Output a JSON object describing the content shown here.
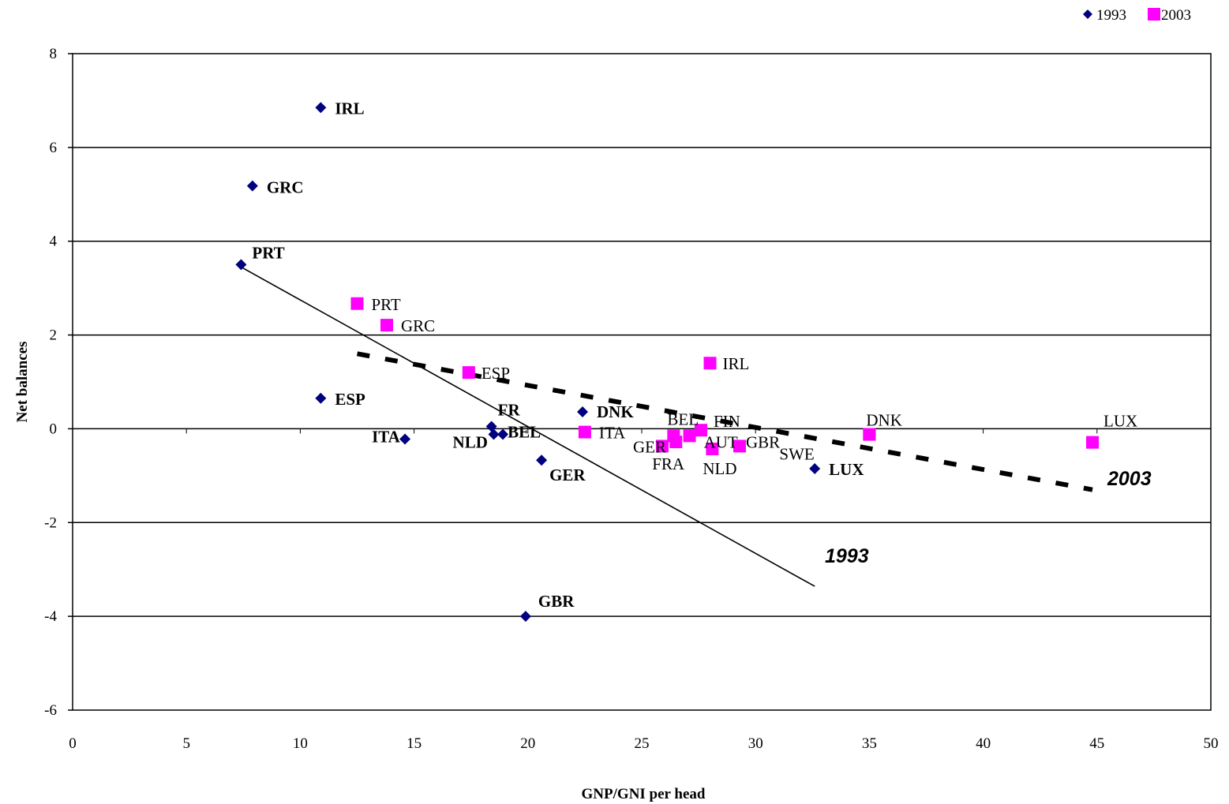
{
  "chart_data": {
    "type": "scatter",
    "xlabel": "GNP/GNI per head",
    "ylabel": "Net balances",
    "xlim": [
      0,
      50
    ],
    "ylim": [
      -6,
      8
    ],
    "x_ticks": [
      "0",
      "5",
      "10",
      "15",
      "20",
      "25",
      "30",
      "35",
      "40",
      "45",
      "50"
    ],
    "y_ticks": [
      "8",
      "6",
      "4",
      "2",
      "0",
      "-2",
      "-4",
      "-6"
    ],
    "grid": "horizontal",
    "legend_position": "top-right",
    "series": [
      {
        "name": "1993",
        "marker": "diamond",
        "color": "#000080",
        "points": [
          {
            "label": "IRL",
            "x": 10.9,
            "y": 6.85
          },
          {
            "label": "GRC",
            "x": 7.9,
            "y": 5.18
          },
          {
            "label": "PRT",
            "x": 7.4,
            "y": 3.5
          },
          {
            "label": "ESP",
            "x": 10.9,
            "y": 0.65
          },
          {
            "label": "ITA",
            "x": 14.6,
            "y": -0.22
          },
          {
            "label": "FR",
            "x": 18.4,
            "y": 0.05
          },
          {
            "label": "NLD",
            "x": 18.5,
            "y": -0.12
          },
          {
            "label": "BEL",
            "x": 18.9,
            "y": -0.12
          },
          {
            "label": "DNK",
            "x": 22.4,
            "y": 0.36
          },
          {
            "label": "GER",
            "x": 20.6,
            "y": -0.67
          },
          {
            "label": "GBR",
            "x": 19.9,
            "y": -4.0
          },
          {
            "label": "LUX",
            "x": 32.6,
            "y": -0.85
          }
        ]
      },
      {
        "name": "2003",
        "marker": "square",
        "color": "#FF00FF",
        "points": [
          {
            "label": "PRT",
            "x": 12.5,
            "y": 2.67
          },
          {
            "label": "GRC",
            "x": 13.8,
            "y": 2.21
          },
          {
            "label": "ESP",
            "x": 17.4,
            "y": 1.2
          },
          {
            "label": "IRL",
            "x": 28.0,
            "y": 1.4
          },
          {
            "label": "ITA",
            "x": 22.5,
            "y": -0.07
          },
          {
            "label": "GER",
            "x": 25.9,
            "y": -0.37
          },
          {
            "label": "FRA",
            "x": 26.5,
            "y": -0.28
          },
          {
            "label": "BEL",
            "x": 26.4,
            "y": -0.15
          },
          {
            "label": "FIN",
            "x": 27.6,
            "y": -0.03
          },
          {
            "label": "AUT",
            "x": 27.1,
            "y": -0.15
          },
          {
            "label": "GBR",
            "x": 29.3,
            "y": -0.37
          },
          {
            "label": "NLD",
            "x": 28.1,
            "y": -0.43
          },
          {
            "label": "SWE",
            "x": 35.0,
            "y": -0.12
          },
          {
            "label": "DNK",
            "x": 35.0,
            "y": -0.12
          },
          {
            "label": "LUX",
            "x": 44.8,
            "y": -0.29
          }
        ]
      }
    ],
    "trendlines": [
      {
        "name": "1993",
        "style": "solid",
        "points": [
          [
            7.4,
            3.45
          ],
          [
            32.6,
            -3.36
          ]
        ]
      },
      {
        "name": "2003",
        "style": "dashed",
        "points": [
          [
            12.5,
            1.6
          ],
          [
            44.8,
            -1.3
          ]
        ]
      }
    ]
  }
}
